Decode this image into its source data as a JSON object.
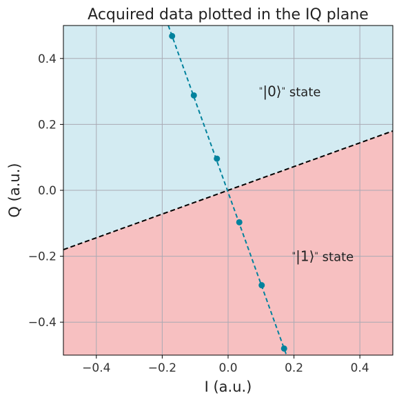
{
  "chart_data": {
    "type": "scatter",
    "title": "Acquired data plotted in the IQ plane",
    "xlabel": "I (a.u.)",
    "ylabel": "Q (a.u.)",
    "xlim": [
      -0.5,
      0.5
    ],
    "ylim": [
      -0.5,
      0.5
    ],
    "xticks": [
      -0.4,
      -0.2,
      0.0,
      0.2,
      0.4
    ],
    "xtick_labels": [
      "−0.4",
      "−0.2",
      "0.0",
      "0.2",
      "0.4"
    ],
    "yticks": [
      -0.4,
      -0.2,
      0.0,
      0.2,
      0.4
    ],
    "ytick_labels": [
      "−0.4",
      "−0.2",
      "0.0",
      "0.2",
      "0.4"
    ],
    "grid": true,
    "series": [
      {
        "x": [
          -0.17,
          -0.104,
          -0.034,
          0.034,
          0.102,
          0.17
        ],
        "y": [
          0.468,
          0.288,
          0.096,
          -0.097,
          -0.288,
          -0.48
        ],
        "color": "#00829d",
        "line_style": "dashed",
        "marker": "circle"
      }
    ],
    "decision_boundary": {
      "x": [
        -0.5,
        0.5
      ],
      "y": [
        -0.18,
        0.18
      ],
      "color": "#000000",
      "line_style": "dashed"
    },
    "regions": [
      {
        "label": "upper",
        "color": "#d3ebf2"
      },
      {
        "label": "lower",
        "color": "#f7c0c1"
      }
    ],
    "annotations": [
      {
        "text_quote": "\"",
        "text_ket": "|0⟩",
        "text_quote2": "\"",
        "text_word": " state",
        "x": 0.1,
        "y": 0.3
      },
      {
        "text_quote": "\"",
        "text_ket": "|1⟩",
        "text_quote2": "\"",
        "text_word": " state",
        "x": 0.2,
        "y": -0.2
      }
    ]
  }
}
